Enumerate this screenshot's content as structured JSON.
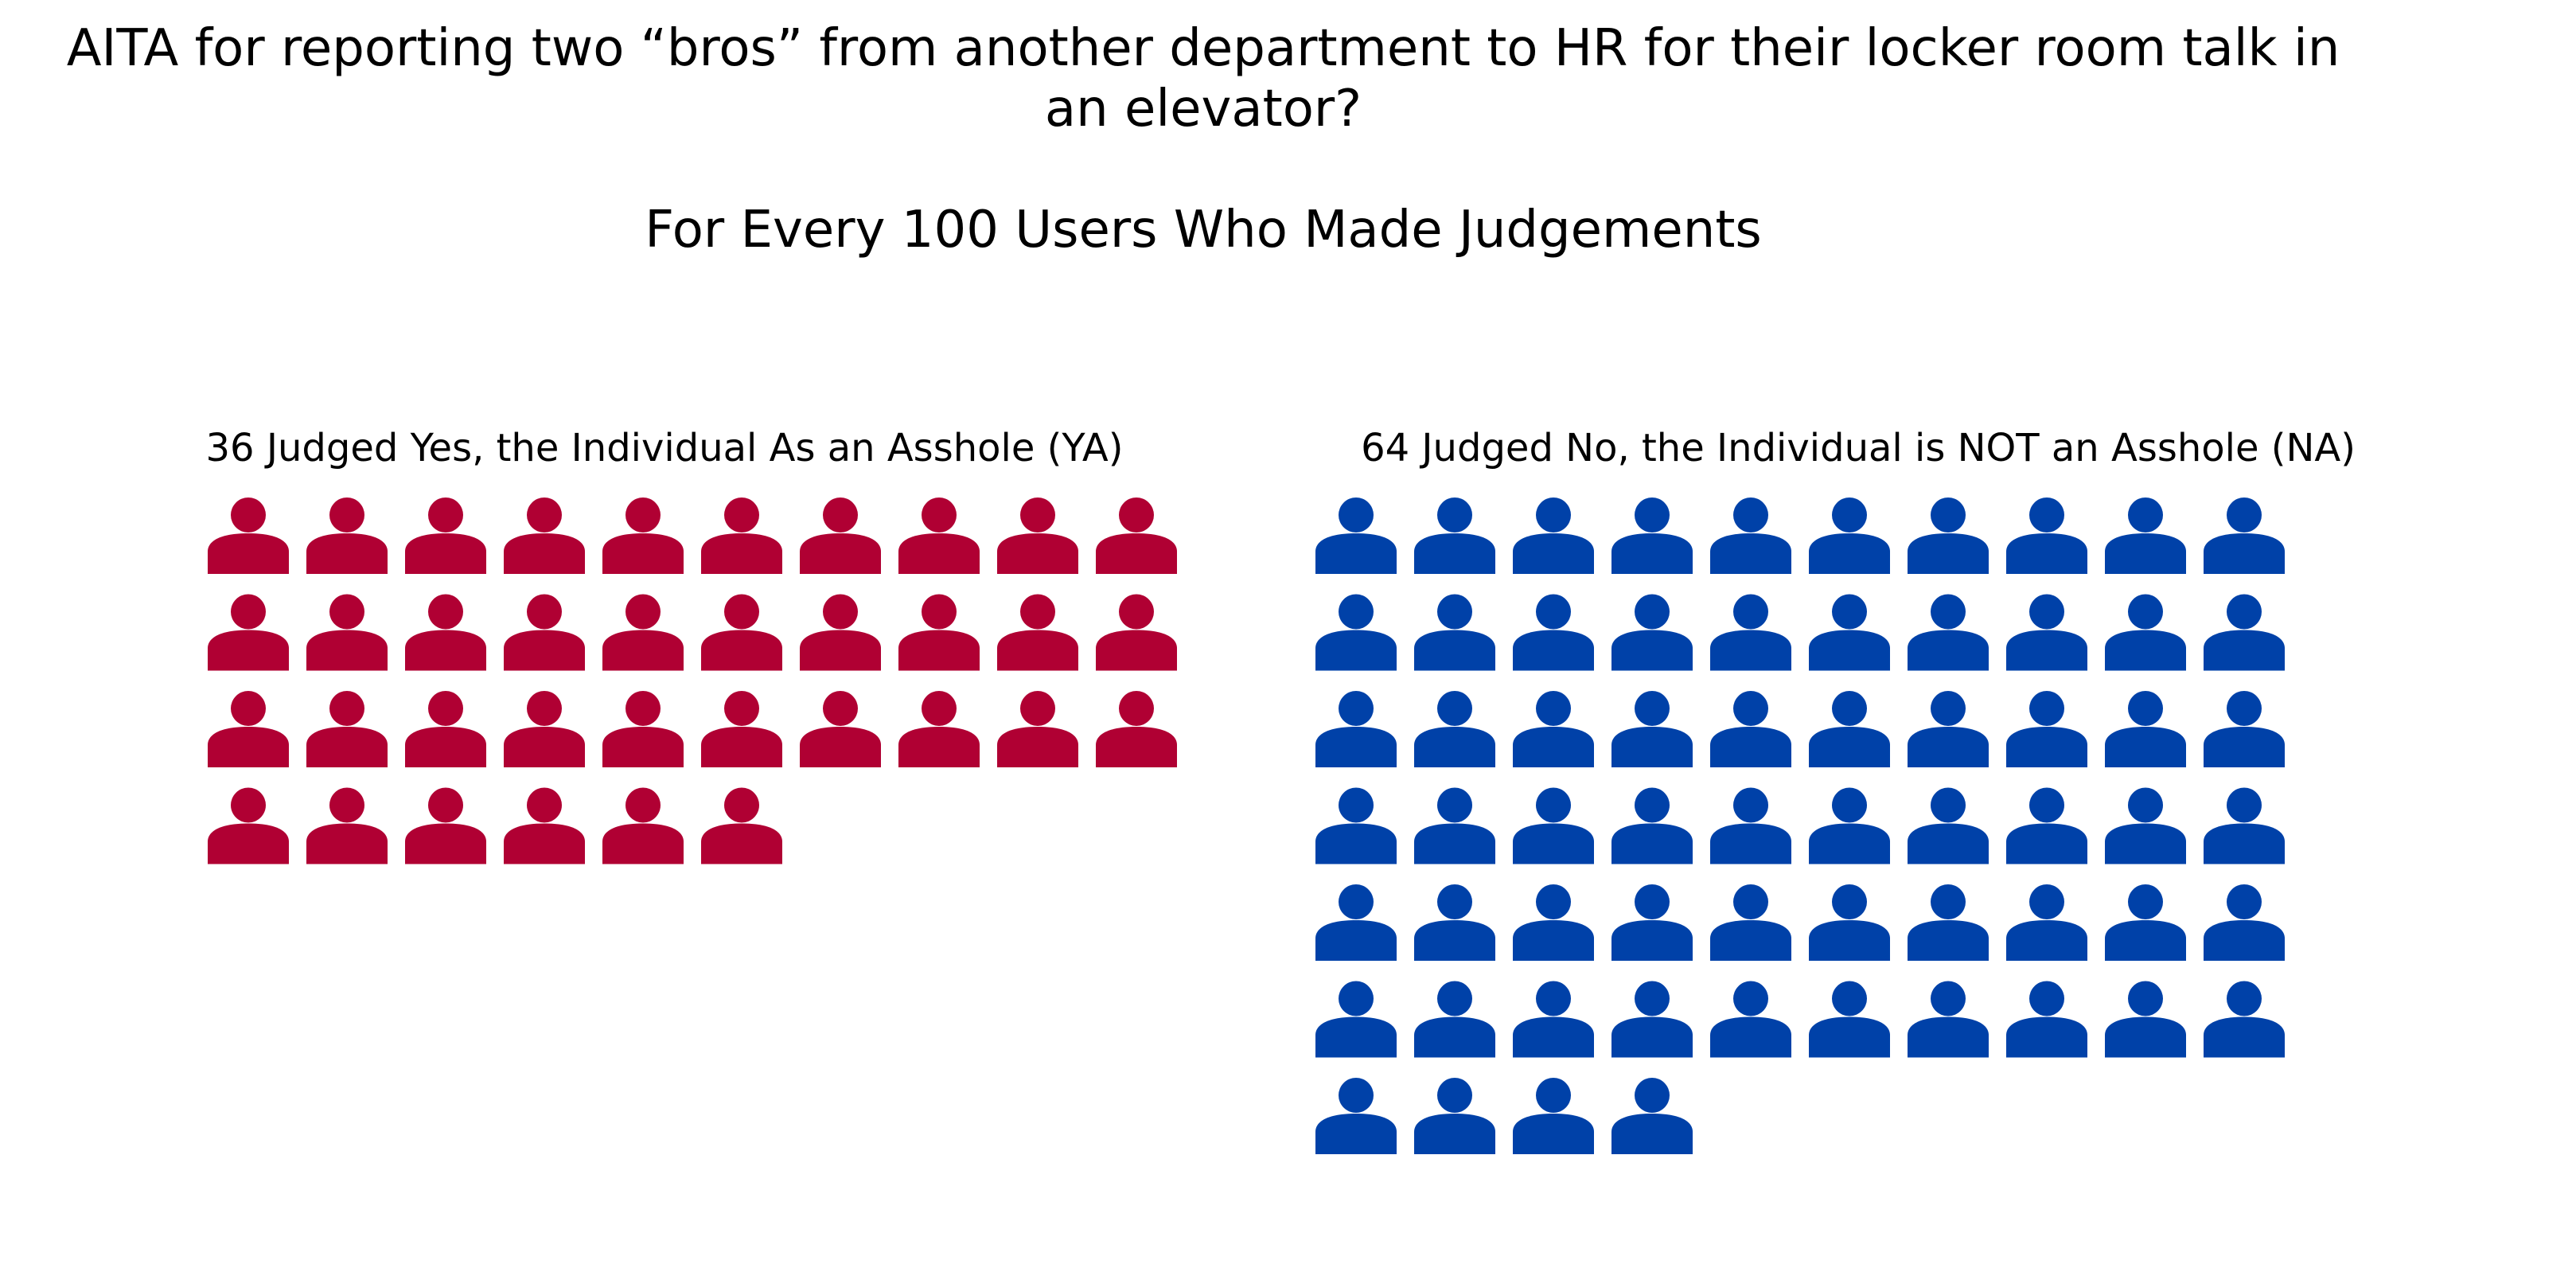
{
  "title": {
    "line1": "AITA for reporting two “bros” from another department to HR for their locker room talk in",
    "line2": "an elevator?",
    "subtitle": "For Every 100 Users Who Made Judgements"
  },
  "chart_data": {
    "type": "pictogram",
    "title": "AITA for reporting two “bros” from another department to HR for their locker room talk in an elevator?",
    "subtitle": "For Every 100 Users Who Made Judgements",
    "total": 100,
    "icons_per_row": 10,
    "icon": "person-icon",
    "groups": [
      {
        "key": "ya",
        "label": "36 Judged Yes, the Individual As an Asshole (YA)",
        "value": 36,
        "color": "#B00033"
      },
      {
        "key": "na",
        "label": "64 Judged No, the Individual is NOT an Asshole (NA)",
        "value": 64,
        "color": "#0041A8"
      }
    ]
  }
}
